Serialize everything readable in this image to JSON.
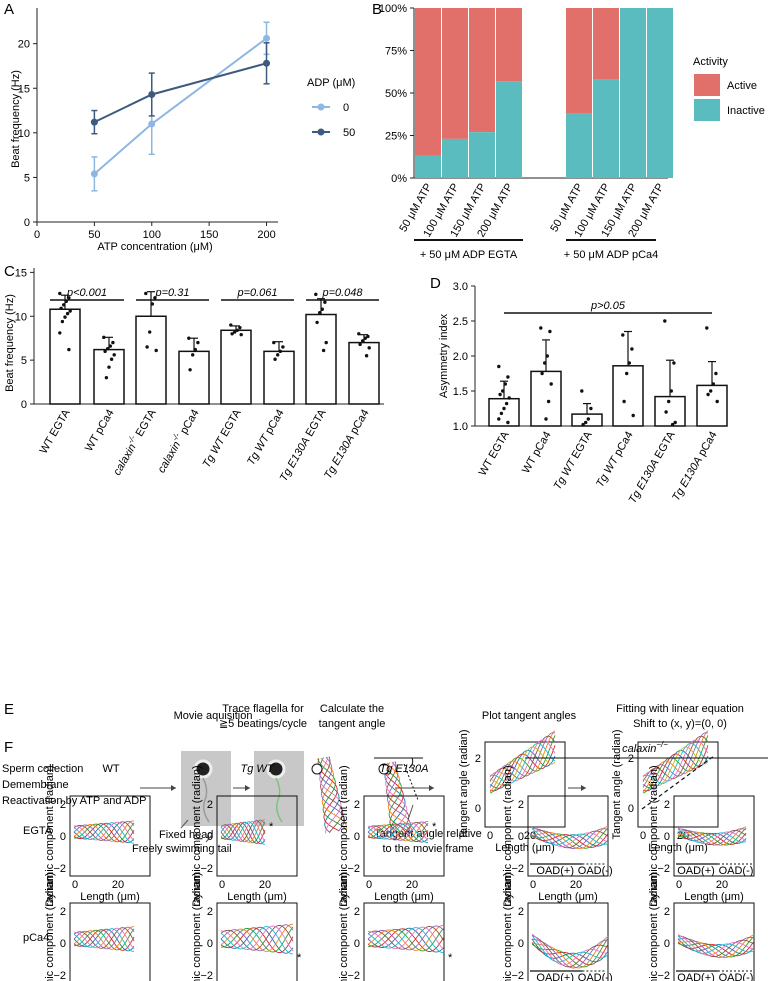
{
  "panels": {
    "A": {
      "letter": "A"
    },
    "B": {
      "letter": "B"
    },
    "C": {
      "letter": "C"
    },
    "D": {
      "letter": "D"
    },
    "E": {
      "letter": "E"
    },
    "F": {
      "letter": "F"
    }
  },
  "chart_data": [
    {
      "panel": "A",
      "type": "line",
      "x": [
        50,
        100,
        200
      ],
      "xlabel": "ATP concentration (μM)",
      "ylabel": "Beat frequency (Hz)",
      "xlim": [
        0,
        210
      ],
      "ylim": [
        0,
        24
      ],
      "xticks": [
        0,
        50,
        100,
        150,
        200
      ],
      "yticks": [
        0,
        5,
        10,
        15,
        20
      ],
      "legend_title": "ADP (μM)",
      "legend_position": "right",
      "series": [
        {
          "name": "0",
          "color": "#8fb7e3",
          "values": [
            5.4,
            11.0,
            20.6
          ],
          "err": [
            1.9,
            3.4,
            1.8
          ]
        },
        {
          "name": "50",
          "color": "#3d5a80",
          "values": [
            11.2,
            14.3,
            17.8
          ],
          "err": [
            1.3,
            2.4,
            2.3
          ]
        }
      ]
    },
    {
      "panel": "B",
      "type": "bar",
      "stacked": true,
      "ylabel": "",
      "yticks": [
        "0%",
        "25%",
        "50%",
        "75%",
        "100%"
      ],
      "legend_title": "Activity",
      "groups": [
        {
          "label": "+ 50 μM ADP EGTA",
          "categories": [
            "50 μM ATP",
            "100 μM ATP",
            "150 μM ATP",
            "200 μM ATP"
          ],
          "inactive": [
            0.13,
            0.23,
            0.27,
            0.57
          ]
        },
        {
          "label": "+ 50 μM ADP pCa4",
          "categories": [
            "50 μM ATP",
            "100 μM ATP",
            "150 μM ATP",
            "200 μM ATP"
          ],
          "inactive": [
            0.38,
            0.58,
            1.0,
            1.0
          ]
        }
      ],
      "series": [
        {
          "name": "Active",
          "color": "#e07069"
        },
        {
          "name": "Inactive",
          "color": "#5bbcbf"
        }
      ]
    },
    {
      "panel": "C",
      "type": "bar",
      "ylabel": "Beat frequency (Hz)",
      "ylim": [
        0,
        15.5
      ],
      "yticks": [
        0,
        5,
        10,
        15
      ],
      "categories": [
        {
          "pre": "WT",
          "post": " EGTA"
        },
        {
          "pre": "WT",
          "post": " pCa4"
        },
        {
          "pre": "calaxin",
          "sup": "-/-",
          "post": " EGTA"
        },
        {
          "pre": "calaxin",
          "sup": "-/-",
          "post": " pCa4"
        },
        {
          "pre": "Tg WT",
          "post": " EGTA"
        },
        {
          "pre": "Tg WT",
          "post": " pCa4"
        },
        {
          "pre": "Tg E130A",
          "post": " EGTA"
        },
        {
          "pre": "Tg E130A",
          "post": " pCa4"
        }
      ],
      "values": [
        10.8,
        6.2,
        10.0,
        6.0,
        8.4,
        6.0,
        10.2,
        7.0
      ],
      "err": [
        1.6,
        1.4,
        2.8,
        1.5,
        0.5,
        1.1,
        1.8,
        0.9
      ],
      "points": [
        [
          12.6,
          12.1,
          11.7,
          11.3,
          10.9,
          10.6,
          10.3,
          9.9,
          9.4,
          8.1,
          6.2
        ],
        [
          7.6,
          7.0,
          6.6,
          6.3,
          6.0,
          5.6,
          5.1,
          4.2,
          3.0
        ],
        [
          12.6,
          12.1,
          11.4,
          8.2,
          6.5,
          6.1
        ],
        [
          7.5,
          7.0,
          6.2,
          5.6,
          3.9
        ],
        [
          9.0,
          8.7,
          8.4,
          8.2,
          8.0,
          7.9
        ],
        [
          7.0,
          6.5,
          6.0,
          5.6,
          5.1
        ],
        [
          12.5,
          11.6,
          10.8,
          10.4,
          9.3,
          7.0,
          6.1
        ],
        [
          8.0,
          7.7,
          7.5,
          7.2,
          6.8,
          6.4,
          5.5
        ]
      ],
      "pvalues": [
        "p<0.001",
        "p=0.31",
        "p=0.061",
        "p=0.048"
      ]
    },
    {
      "panel": "D",
      "type": "bar",
      "ylabel": "Asymmetry index",
      "ylim": [
        1.0,
        3.0
      ],
      "yticks": [
        1.0,
        1.5,
        2.0,
        2.5,
        3.0
      ],
      "categories": [
        {
          "pre": "WT",
          "post": " EGTA"
        },
        {
          "pre": "WT",
          "post": " pCa4"
        },
        {
          "pre": "Tg WT",
          "post": " EGTA"
        },
        {
          "pre": "Tg WT",
          "post": " pCa4"
        },
        {
          "pre": "Tg E130A",
          "post": " EGTA"
        },
        {
          "pre": "Tg E130A",
          "post": " pCa4"
        }
      ],
      "values": [
        1.39,
        1.78,
        1.17,
        1.86,
        1.42,
        1.58
      ],
      "err": [
        0.25,
        0.45,
        0.15,
        0.49,
        0.52,
        0.34
      ],
      "points": [
        [
          1.85,
          1.7,
          1.6,
          1.5,
          1.45,
          1.4,
          1.32,
          1.25,
          1.18,
          1.1,
          1.05
        ],
        [
          2.4,
          2.35,
          2.0,
          1.9,
          1.75,
          1.6,
          1.35,
          1.1
        ],
        [
          1.5,
          1.25,
          1.1,
          1.05,
          1.02
        ],
        [
          2.3,
          2.1,
          1.9,
          1.75,
          1.35,
          1.15
        ],
        [
          2.5,
          1.9,
          1.5,
          1.35,
          1.2,
          1.05,
          1.02
        ],
        [
          2.4,
          1.75,
          1.6,
          1.5,
          1.45,
          1.35
        ]
      ],
      "pvalue": "p>0.05"
    }
  ],
  "panel_E": {
    "steps": [
      {
        "title": [
          "Movie aquisition"
        ]
      },
      {
        "title": [
          "Trace flagella for",
          "≧5 beatings/cycle"
        ]
      },
      {
        "title": [
          "Calculate the",
          "tangent angle"
        ]
      },
      {
        "title": [
          "Plot tangent angles"
        ]
      },
      {
        "title": [
          "Fitting with linear equation",
          "Shift to (x, y)=(0, 0)"
        ]
      }
    ],
    "protocol": [
      "Sperm collection",
      "Demembrane",
      "Reactivation by ATP and ADP"
    ],
    "fixed_head": "Fixed head",
    "free_tail": "Freely swimming tail",
    "angle_note": [
      "Tangent angle relative",
      "to the movie frame"
    ],
    "plot_ylabel": "Tangent angle (radian)",
    "plot_xlabel": "Length (μm)",
    "yticks": [
      "0",
      "2"
    ],
    "xticks": [
      "0",
      "20"
    ]
  },
  "panel_F": {
    "columns": [
      {
        "label": "WT",
        "italic": false
      },
      {
        "label": "Tg WT",
        "italic": true
      },
      {
        "label": "Tg E130A",
        "italic": true
      }
    ],
    "calaxin_label": "calaxin",
    "calaxin_sup": "−/−",
    "rows": [
      "EGTA",
      "pCa4"
    ],
    "ylabel": "Dynamic component (radian)",
    "xlabel": "Length (μm)",
    "yticks": [
      "2",
      "0",
      "−2"
    ],
    "xticks": [
      "0",
      "20"
    ],
    "oad_plus": "OAD(+)",
    "oad_minus": "OAD(-)",
    "asterisk": "*"
  },
  "wave_colors": [
    "#1f77b4",
    "#d62728",
    "#2ca02c",
    "#ff7f0e",
    "#9467bd",
    "#8c564b",
    "#e377c2",
    "#17becf",
    "#bcbd22"
  ]
}
